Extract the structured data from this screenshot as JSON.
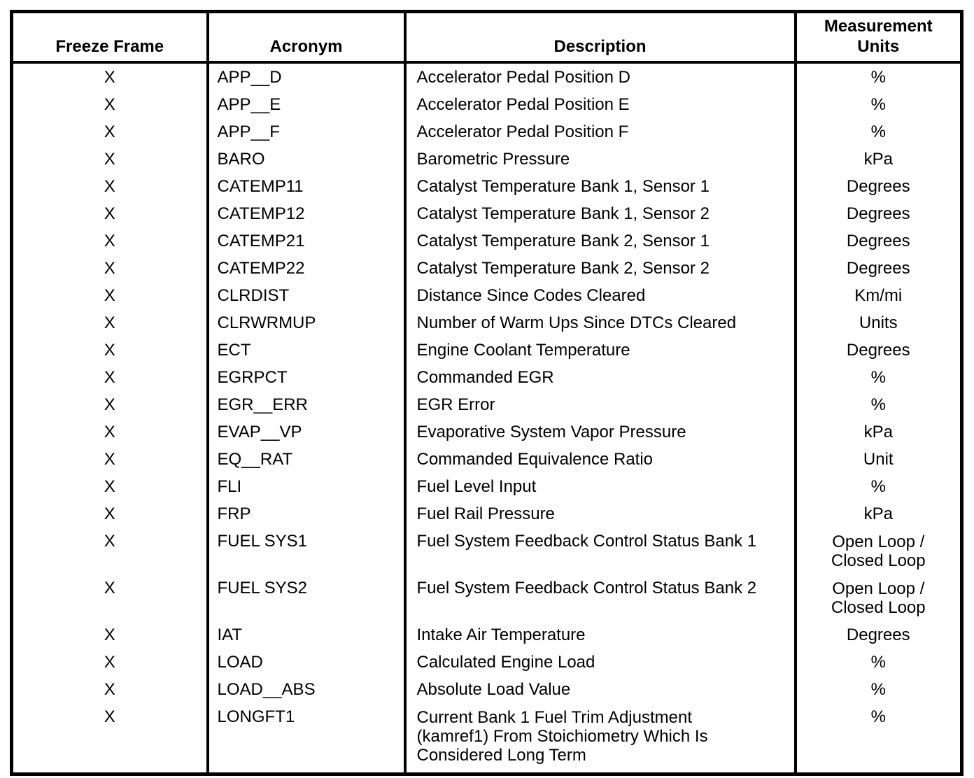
{
  "table": {
    "headers": {
      "freeze_frame": "Freeze Frame",
      "acronym": "Acronym",
      "description": "Description",
      "measurement_units": "Measurement\nUnits"
    },
    "rows": [
      {
        "freeze": "X",
        "acronym": "APP__D",
        "description": "Accelerator Pedal Position D",
        "units": "%"
      },
      {
        "freeze": "X",
        "acronym": "APP__E",
        "description": "Accelerator Pedal Position E",
        "units": "%"
      },
      {
        "freeze": "X",
        "acronym": "APP__F",
        "description": "Accelerator Pedal Position F",
        "units": "%"
      },
      {
        "freeze": "X",
        "acronym": "BARO",
        "description": "Barometric Pressure",
        "units": "kPa"
      },
      {
        "freeze": "X",
        "acronym": "CATEMP11",
        "description": "Catalyst Temperature Bank 1, Sensor 1",
        "units": "Degrees"
      },
      {
        "freeze": "X",
        "acronym": "CATEMP12",
        "description": "Catalyst Temperature Bank 1, Sensor 2",
        "units": "Degrees"
      },
      {
        "freeze": "X",
        "acronym": "CATEMP21",
        "description": "Catalyst Temperature Bank 2, Sensor 1",
        "units": "Degrees"
      },
      {
        "freeze": "X",
        "acronym": "CATEMP22",
        "description": "Catalyst Temperature Bank 2, Sensor 2",
        "units": "Degrees"
      },
      {
        "freeze": "X",
        "acronym": "CLRDIST",
        "description": "Distance Since Codes Cleared",
        "units": "Km/mi"
      },
      {
        "freeze": "X",
        "acronym": "CLRWRMUP",
        "description": "Number of Warm Ups Since DTCs Cleared",
        "units": "Units"
      },
      {
        "freeze": "X",
        "acronym": "ECT",
        "description": "Engine Coolant Temperature",
        "units": "Degrees"
      },
      {
        "freeze": "X",
        "acronym": "EGRPCT",
        "description": "Commanded EGR",
        "units": "%"
      },
      {
        "freeze": "X",
        "acronym": "EGR__ERR",
        "description": "EGR Error",
        "units": "%"
      },
      {
        "freeze": "X",
        "acronym": "EVAP__VP",
        "description": "Evaporative System Vapor Pressure",
        "units": "kPa"
      },
      {
        "freeze": "X",
        "acronym": "EQ__RAT",
        "description": "Commanded Equivalence Ratio",
        "units": "Unit"
      },
      {
        "freeze": "X",
        "acronym": "FLI",
        "description": "Fuel Level Input",
        "units": "%"
      },
      {
        "freeze": "X",
        "acronym": "FRP",
        "description": "Fuel Rail Pressure",
        "units": "kPa"
      },
      {
        "freeze": "X",
        "acronym": "FUEL SYS1",
        "description": "Fuel System Feedback Control Status Bank 1",
        "units": "Open Loop /\nClosed Loop"
      },
      {
        "freeze": "X",
        "acronym": "FUEL SYS2",
        "description": "Fuel System Feedback Control Status Bank 2",
        "units": "Open Loop /\nClosed Loop"
      },
      {
        "freeze": "X",
        "acronym": "IAT",
        "description": "Intake Air Temperature",
        "units": "Degrees"
      },
      {
        "freeze": "X",
        "acronym": "LOAD",
        "description": "Calculated Engine Load",
        "units": "%"
      },
      {
        "freeze": "X",
        "acronym": "LOAD__ABS",
        "description": "Absolute Load Value",
        "units": "%"
      },
      {
        "freeze": "X",
        "acronym": "LONGFT1",
        "description": "Current Bank 1 Fuel Trim Adjustment\n(kamref1) From Stoichiometry Which Is\nConsidered Long Term",
        "units": "%"
      }
    ]
  }
}
